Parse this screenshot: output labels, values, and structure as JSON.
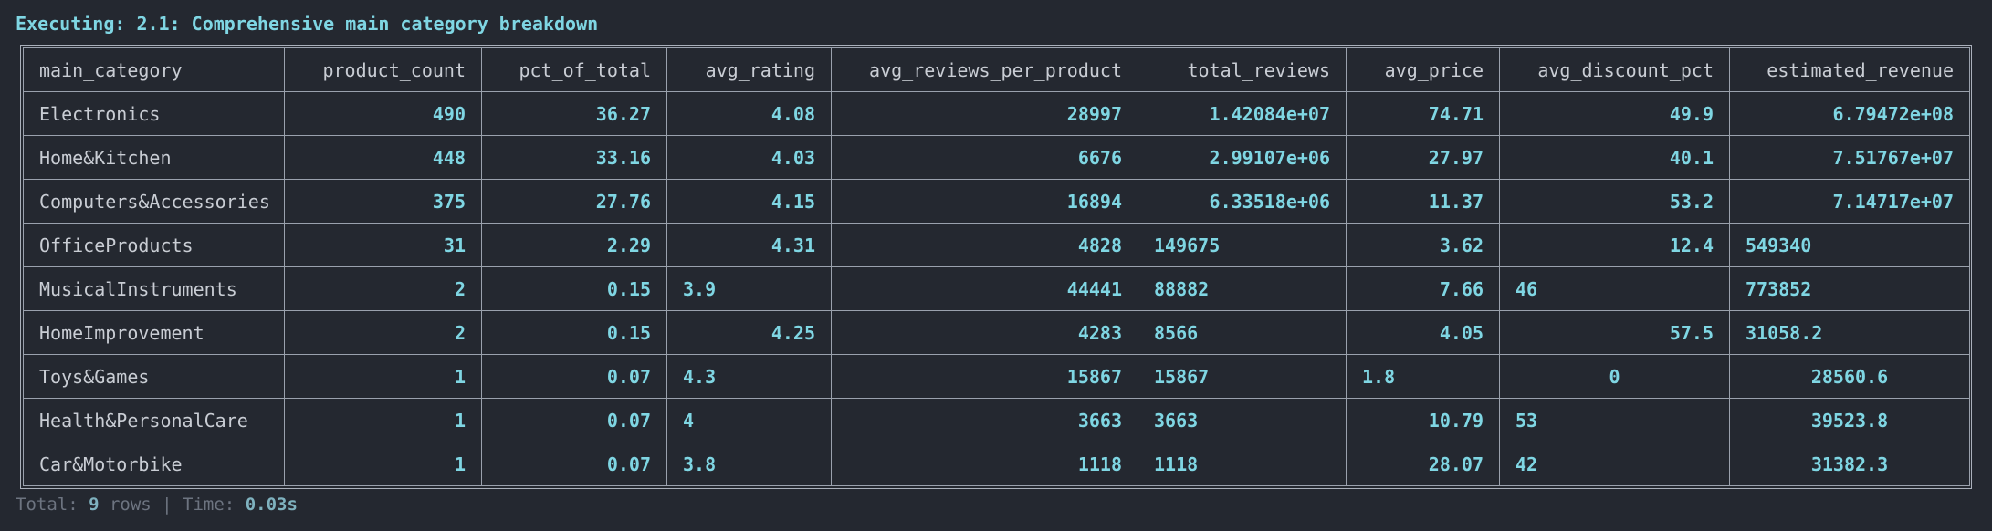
{
  "header": {
    "title": "Executing: 2.1: Comprehensive main category breakdown"
  },
  "table": {
    "columns": [
      {
        "label": "main_category",
        "align": "l"
      },
      {
        "label": "product_count",
        "align": "r"
      },
      {
        "label": "pct_of_total",
        "align": "r"
      },
      {
        "label": "avg_rating",
        "align": "r"
      },
      {
        "label": "avg_reviews_per_product",
        "align": "r"
      },
      {
        "label": "total_reviews",
        "align": "r"
      },
      {
        "label": "avg_price",
        "align": "r"
      },
      {
        "label": "avg_discount_pct",
        "align": "r"
      },
      {
        "label": "estimated_revenue",
        "align": "r"
      }
    ],
    "rows": [
      [
        "Electronics",
        "490",
        "36.27",
        "4.08",
        "28997",
        "1.42084e+07",
        "74.71",
        "49.9",
        "6.79472e+08"
      ],
      [
        "Home&Kitchen",
        "448",
        "33.16",
        "4.03",
        "6676",
        "2.99107e+06",
        "27.97",
        "40.1",
        "7.51767e+07"
      ],
      [
        "Computers&Accessories",
        "375",
        "27.76",
        "4.15",
        "16894",
        "6.33518e+06",
        "11.37",
        "53.2",
        "7.14717e+07"
      ],
      [
        "OfficeProducts",
        "31",
        "2.29",
        "4.31",
        "4828",
        "149675",
        "3.62",
        "12.4",
        "549340"
      ],
      [
        "MusicalInstruments",
        "2",
        "0.15",
        "3.9",
        "44441",
        "88882",
        "7.66",
        "46",
        "773852"
      ],
      [
        "HomeImprovement",
        "2",
        "0.15",
        "4.25",
        "4283",
        "8566",
        "4.05",
        "57.5",
        "31058.2"
      ],
      [
        "Toys&Games",
        "1",
        "0.07",
        "4.3",
        "15867",
        "15867",
        "1.8",
        "0",
        "28560.6"
      ],
      [
        "Health&PersonalCare",
        "1",
        "0.07",
        "4",
        "3663",
        "3663",
        "10.79",
        "53",
        "39523.8"
      ],
      [
        "Car&Motorbike",
        "1",
        "0.07",
        "3.8",
        "1118",
        "1118",
        "28.07",
        "42",
        "31382.3"
      ]
    ],
    "cell_align": [
      [
        "l",
        "r",
        "r",
        "r",
        "r",
        "r",
        "r",
        "r",
        "r"
      ],
      [
        "l",
        "r",
        "r",
        "r",
        "r",
        "r",
        "r",
        "r",
        "r"
      ],
      [
        "l",
        "r",
        "r",
        "r",
        "r",
        "r",
        "r",
        "r",
        "r"
      ],
      [
        "l",
        "r",
        "r",
        "r",
        "r",
        "l",
        "r",
        "r",
        "l"
      ],
      [
        "l",
        "r",
        "r",
        "l",
        "r",
        "l",
        "r",
        "l",
        "l"
      ],
      [
        "l",
        "r",
        "r",
        "r",
        "r",
        "l",
        "r",
        "r",
        "l"
      ],
      [
        "l",
        "r",
        "r",
        "l",
        "r",
        "l",
        "l",
        "c",
        "c"
      ],
      [
        "l",
        "r",
        "r",
        "l",
        "r",
        "l",
        "r",
        "l",
        "c"
      ],
      [
        "l",
        "r",
        "r",
        "l",
        "r",
        "l",
        "r",
        "l",
        "c"
      ]
    ]
  },
  "footer": {
    "total_label": "Total: ",
    "row_count": "9",
    "rows_label": " rows | Time: ",
    "time": "0.03s"
  }
}
